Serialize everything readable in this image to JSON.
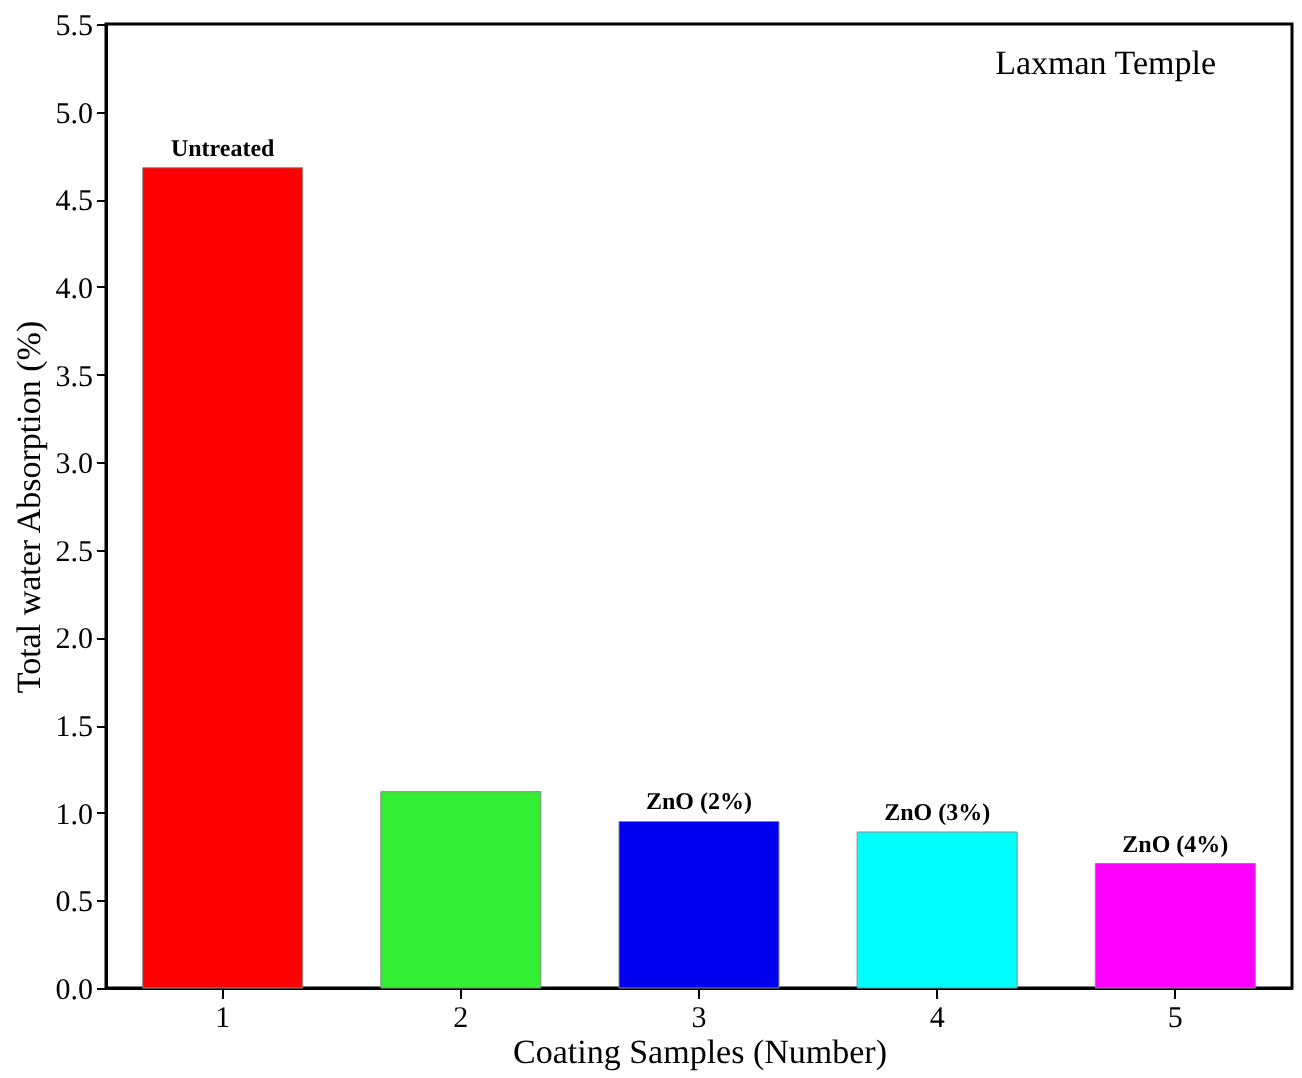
{
  "chart_data": {
    "type": "bar",
    "xlabel": "Coating Samples (Number)",
    "ylabel": "Total water Absorption (%)",
    "categories": [
      "1",
      "2",
      "3",
      "4",
      "5"
    ],
    "values": [
      4.68,
      1.12,
      0.95,
      0.89,
      0.71
    ],
    "colors": [
      "#ff0000",
      "#33ee33",
      "#0000ee",
      "#00ffff",
      "#ff00ff"
    ],
    "ylim": [
      0,
      5.5
    ],
    "yticks": [
      {
        "value": 0,
        "label": "0.0"
      },
      0.5,
      {
        "value": 1,
        "label": "1.0"
      },
      1.5,
      {
        "value": 2,
        "label": "2.0"
      },
      2.5,
      {
        "value": 3,
        "label": "3.0"
      },
      3.5,
      {
        "value": 4,
        "label": "4.0"
      },
      4.5,
      {
        "value": 5,
        "label": "5.0"
      },
      5.5
    ],
    "grid": false,
    "annotations": [
      {
        "text": "Untreated",
        "x": "1",
        "y": 4.68
      },
      {
        "text": "ZnO (2%)",
        "x": "3",
        "y": 0.95
      },
      {
        "text": "ZnO (3%)",
        "x": "4",
        "y": 0.89
      },
      {
        "text": "ZnO (4%)",
        "x": "5",
        "y": 0.71
      },
      "Laxman Temple"
    ]
  }
}
